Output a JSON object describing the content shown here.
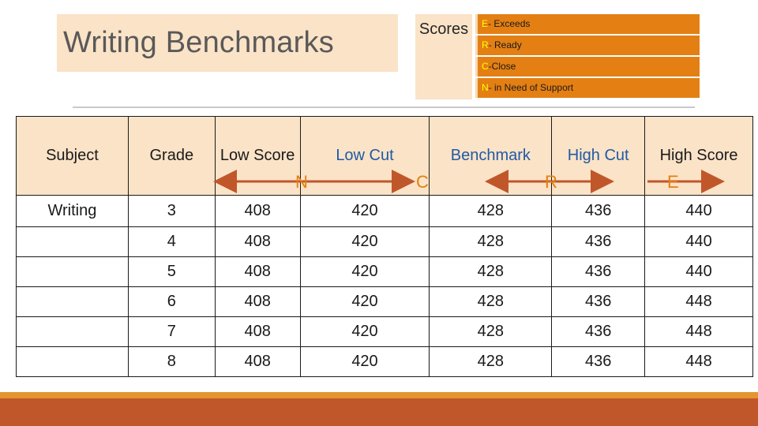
{
  "title": "Writing Benchmarks",
  "scores_label": "Scores",
  "legend": [
    {
      "letter": "E",
      "text": "- Exceeds"
    },
    {
      "letter": "R",
      "text": "- Ready"
    },
    {
      "letter": "C",
      "text": "-Close"
    },
    {
      "letter": "N",
      "text": "- in Need of Support"
    }
  ],
  "table": {
    "headers": [
      "Subject",
      "Grade",
      "Low Score",
      "Low Cut",
      "Benchmark",
      "High Cut",
      "High Score"
    ],
    "subject": "Writing",
    "rows": [
      [
        "3",
        "408",
        "420",
        "428",
        "436",
        "440"
      ],
      [
        "4",
        "408",
        "420",
        "428",
        "436",
        "440"
      ],
      [
        "5",
        "408",
        "420",
        "428",
        "436",
        "440"
      ],
      [
        "6",
        "408",
        "420",
        "428",
        "436",
        "448"
      ],
      [
        "7",
        "408",
        "420",
        "428",
        "436",
        "448"
      ],
      [
        "8",
        "408",
        "420",
        "428",
        "436",
        "448"
      ]
    ]
  },
  "range_arrows": [
    "N",
    "C",
    "R",
    "E"
  ],
  "colors": {
    "accent": "#e47f13",
    "header_fill": "#fbe3c7",
    "arrow": "#c0572a",
    "footer": "#c0572a"
  }
}
